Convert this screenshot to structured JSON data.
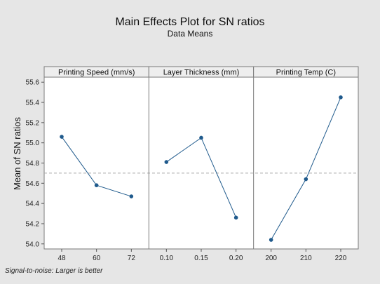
{
  "chart_data": {
    "type": "line",
    "title": "Main Effects Plot for SN ratios",
    "subtitle": "Data Means",
    "ylabel": "Mean of SN ratios",
    "ylim": [
      53.95,
      55.65
    ],
    "yticks": [
      54.0,
      54.2,
      54.4,
      54.6,
      54.8,
      55.0,
      55.2,
      55.4,
      55.6
    ],
    "ytick_labels": [
      "54.0",
      "54.2",
      "54.4",
      "54.6",
      "54.8",
      "55.0",
      "55.2",
      "55.4",
      "55.6"
    ],
    "reference_line": 54.7,
    "grid": false,
    "panels": [
      {
        "label": "Printing Speed (mm/s)",
        "categories": [
          "48",
          "60",
          "72"
        ],
        "values": [
          55.06,
          54.58,
          54.47
        ]
      },
      {
        "label": "Layer Thickness (mm)",
        "categories": [
          "0.10",
          "0.15",
          "0.20"
        ],
        "values": [
          54.81,
          55.05,
          54.26
        ]
      },
      {
        "label": "Printing Temp (C)",
        "categories": [
          "200",
          "210",
          "220"
        ],
        "values": [
          54.04,
          54.64,
          55.45
        ]
      }
    ],
    "footnote": "Signal-to-noise: Larger is better",
    "colors": {
      "line": "#1f5a8c",
      "marker": "#1f5a8c",
      "reference": "#a9a9a9",
      "plot_bg": "#ffffff",
      "page_bg": "#e6e6e6",
      "header_bg": "#eeeeee"
    }
  }
}
